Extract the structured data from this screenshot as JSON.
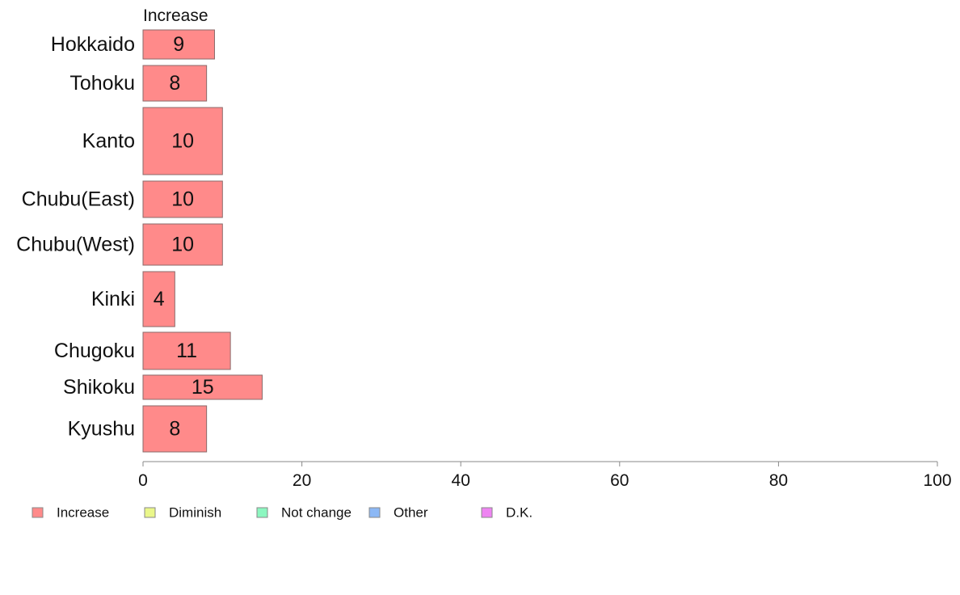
{
  "chart_data": {
    "type": "bar",
    "orientation": "horizontal",
    "stacked": true,
    "series_header": "Increase",
    "categories": [
      "Hokkaido",
      "Tohoku",
      "Kanto",
      "Chubu(East)",
      "Chubu(West)",
      "Kinki",
      "Chugoku",
      "Shikoku",
      "Kyushu"
    ],
    "series": [
      {
        "name": "Increase",
        "color": "#ff8a8a",
        "values": [
          9,
          8,
          10,
          10,
          10,
          4,
          11,
          15,
          8
        ]
      }
    ],
    "legend": [
      {
        "label": "Increase",
        "color": "#ff8a8a"
      },
      {
        "label": "Diminish",
        "color": "#eaf78a"
      },
      {
        "label": "Not change",
        "color": "#8cf7c0"
      },
      {
        "label": "Other",
        "color": "#8cb8f5"
      },
      {
        "label": "D.K.",
        "color": "#ee84f2"
      }
    ],
    "legend_position": "bottom-left",
    "xlim": [
      0,
      100
    ],
    "xticks": [
      "0",
      "20",
      "40",
      "60",
      "80",
      "100"
    ],
    "grid": false
  }
}
